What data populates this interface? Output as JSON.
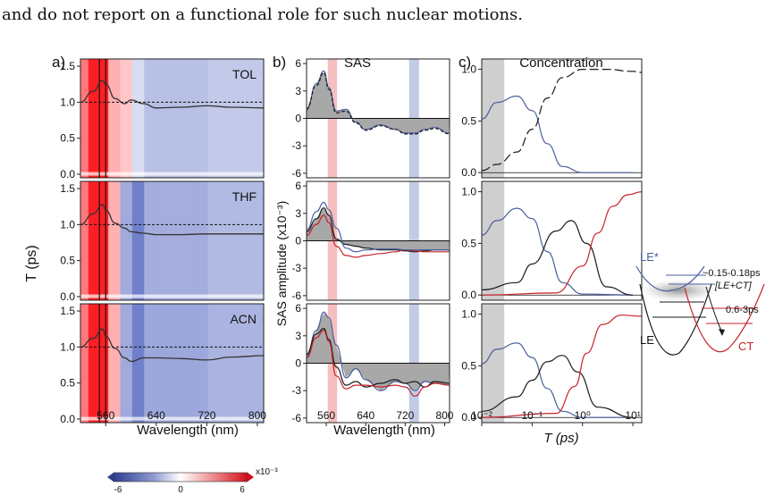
{
  "caption": "and do not report on a functional role for such nuclear motions.",
  "panels": {
    "a": {
      "label": "a)",
      "ylabel": "T (ps)",
      "xlabel": "Wavelength (nm)",
      "rows": [
        "TOL",
        "THF",
        "ACN"
      ],
      "yticks": [
        "0.0",
        "0.5",
        "1.0",
        "1.5"
      ],
      "xticks": [
        "560",
        "640",
        "720",
        "800"
      ]
    },
    "b": {
      "label": "b)",
      "title": "SAS",
      "ylabel": "SAS amplitude  (x10⁻³)",
      "xlabel": "Wavelength (nm)",
      "yticks": [
        "6",
        "3",
        "0",
        "-3",
        "-6"
      ],
      "xticks": [
        "560",
        "640",
        "720",
        "800"
      ]
    },
    "c": {
      "label": "c)",
      "title": "Concentration",
      "xlabel": "T (ps)",
      "yticks": [
        "0.0",
        "0.5",
        "1.0"
      ],
      "xticks": [
        "10⁻²",
        "10⁻¹",
        "10⁰",
        "10¹"
      ]
    }
  },
  "colorbar": {
    "unit": "x10⁻³",
    "ticks": [
      "-6",
      "0",
      "6"
    ]
  },
  "scheme": {
    "le_star": "LE*",
    "le": "LE",
    "ct": "CT",
    "mixed": "[LE+CT]",
    "time1": "~0.15-0.18ps",
    "time2": "0.6-3ps"
  },
  "colors": {
    "blue": "#4a5f9e",
    "red": "#c8222a",
    "black": "#1a1a1a",
    "gray": "#9a9a9a"
  },
  "chart_data": [
    {
      "type": "heatmap",
      "panel": "a",
      "rows": [
        "TOL",
        "THF",
        "ACN"
      ],
      "xlabel": "Wavelength (nm)",
      "ylabel": "T (ps)",
      "xlim": [
        520,
        810
      ],
      "ylim": [
        -0.05,
        1.6
      ],
      "colorbar": [
        -6,
        6
      ],
      "trace_x": [
        520,
        540,
        555,
        560,
        575,
        590,
        600,
        620,
        640,
        680,
        720,
        760,
        810
      ],
      "trace_y": {
        "TOL": [
          1.0,
          1.15,
          1.3,
          1.25,
          1.05,
          0.98,
          1.03,
          0.98,
          0.92,
          0.93,
          0.95,
          0.93,
          0.92
        ],
        "THF": [
          1.0,
          1.15,
          1.28,
          1.2,
          1.02,
          0.95,
          0.9,
          0.88,
          0.86,
          0.86,
          0.87,
          0.87,
          0.87
        ],
        "ACN": [
          1.0,
          1.12,
          1.25,
          1.15,
          0.98,
          0.85,
          0.8,
          0.85,
          0.85,
          0.84,
          0.82,
          0.86,
          0.88
        ]
      }
    },
    {
      "type": "line",
      "panel": "b",
      "xlabel": "Wavelength (nm)",
      "ylabel": "SAS amplitude  (x10⁻³)",
      "xlim": [
        520,
        810
      ],
      "ylim": [
        -6.5,
        6.5
      ],
      "x": [
        520,
        540,
        555,
        565,
        580,
        600,
        620,
        640,
        670,
        700,
        720,
        740,
        760,
        780,
        810
      ],
      "rows": [
        [
          {
            "name": "blue",
            "values": [
              1.0,
              3.8,
              5.2,
              3.4,
              0.8,
              1.0,
              -0.4,
              -1.2,
              -0.7,
              -1.2,
              -1.6,
              -1.6,
              -1.2,
              -1.0,
              -1.6
            ]
          },
          {
            "name": "black-dashed",
            "values": [
              1.0,
              3.6,
              5.0,
              3.2,
              0.6,
              0.8,
              -0.5,
              -1.3,
              -0.8,
              -1.2,
              -1.7,
              -1.7,
              -1.3,
              -1.1,
              -1.7
            ]
          }
        ],
        [
          {
            "name": "black",
            "values": [
              1.0,
              2.4,
              3.6,
              2.8,
              0.2,
              -0.4,
              -0.6,
              -0.8,
              -1.0,
              -1.0,
              -1.1,
              -1.2,
              -1.1,
              -1.0,
              -1.0
            ]
          },
          {
            "name": "red",
            "values": [
              0.6,
              1.8,
              2.8,
              2.0,
              -0.6,
              -1.6,
              -1.8,
              -1.6,
              -1.4,
              -1.2,
              -1.0,
              -1.1,
              -1.2,
              -1.2,
              -1.2
            ]
          },
          {
            "name": "blue",
            "values": [
              1.2,
              3.2,
              4.2,
              3.4,
              1.4,
              -0.8,
              -1.2,
              -1.0,
              -0.9,
              -0.9,
              -1.0,
              -1.0,
              -1.0,
              -1.0,
              -1.0
            ]
          }
        ],
        [
          {
            "name": "blue",
            "values": [
              0.8,
              3.6,
              5.6,
              5.0,
              2.0,
              -1.6,
              -0.6,
              -1.8,
              -3.0,
              -2.0,
              -2.2,
              -3.0,
              -2.0,
              -2.2,
              -2.4
            ]
          },
          {
            "name": "black",
            "values": [
              1.0,
              3.2,
              3.8,
              2.6,
              -0.4,
              -2.4,
              -2.0,
              -2.6,
              -2.2,
              -1.8,
              -2.2,
              -2.0,
              -2.6,
              -2.0,
              -2.2
            ]
          },
          {
            "name": "red",
            "values": [
              0.6,
              2.8,
              3.6,
              2.4,
              -1.4,
              -2.8,
              -2.4,
              -2.4,
              -2.6,
              -2.4,
              -2.6,
              -3.6,
              -2.6,
              -2.2,
              -2.4
            ]
          }
        ]
      ]
    },
    {
      "type": "line",
      "panel": "c",
      "xlabel": "T (ps)",
      "xscale": "log",
      "xlim": [
        0.01,
        15
      ],
      "ylim": [
        -0.05,
        1.1
      ],
      "rows": [
        [
          {
            "name": "blue",
            "x": [
              0.01,
              0.02,
              0.05,
              0.1,
              0.2,
              0.4,
              1,
              10
            ],
            "values": [
              0.52,
              0.68,
              0.74,
              0.6,
              0.28,
              0.06,
              0.0,
              0.0
            ]
          },
          {
            "name": "black-dashed",
            "x": [
              0.01,
              0.02,
              0.05,
              0.1,
              0.2,
              0.4,
              1,
              3,
              10,
              15
            ],
            "values": [
              0.02,
              0.08,
              0.2,
              0.42,
              0.72,
              0.92,
              1.0,
              1.0,
              0.98,
              0.97
            ]
          }
        ],
        [
          {
            "name": "blue",
            "x": [
              0.01,
              0.02,
              0.05,
              0.1,
              0.2,
              0.4,
              1,
              10
            ],
            "values": [
              0.58,
              0.72,
              0.84,
              0.74,
              0.42,
              0.12,
              0.01,
              0.0
            ]
          },
          {
            "name": "black",
            "x": [
              0.01,
              0.05,
              0.1,
              0.3,
              0.6,
              1.2,
              3,
              10
            ],
            "values": [
              0.05,
              0.12,
              0.3,
              0.62,
              0.72,
              0.5,
              0.08,
              0.0
            ]
          },
          {
            "name": "red",
            "x": [
              0.01,
              0.3,
              1,
              2,
              4,
              8,
              15
            ],
            "values": [
              0.0,
              0.02,
              0.28,
              0.6,
              0.86,
              0.97,
              1.0
            ]
          }
        ],
        [
          {
            "name": "blue",
            "x": [
              0.01,
              0.02,
              0.05,
              0.1,
              0.2,
              0.4,
              1,
              10
            ],
            "values": [
              0.52,
              0.66,
              0.72,
              0.58,
              0.28,
              0.06,
              0.0,
              0.0
            ]
          },
          {
            "name": "black",
            "x": [
              0.01,
              0.05,
              0.1,
              0.2,
              0.4,
              0.8,
              2,
              10
            ],
            "values": [
              0.06,
              0.2,
              0.36,
              0.54,
              0.6,
              0.44,
              0.1,
              0.0
            ]
          },
          {
            "name": "red",
            "x": [
              0.01,
              0.3,
              0.7,
              1.2,
              2.5,
              6,
              15
            ],
            "values": [
              0.0,
              0.04,
              0.3,
              0.62,
              0.9,
              0.99,
              0.98
            ]
          }
        ]
      ]
    }
  ]
}
